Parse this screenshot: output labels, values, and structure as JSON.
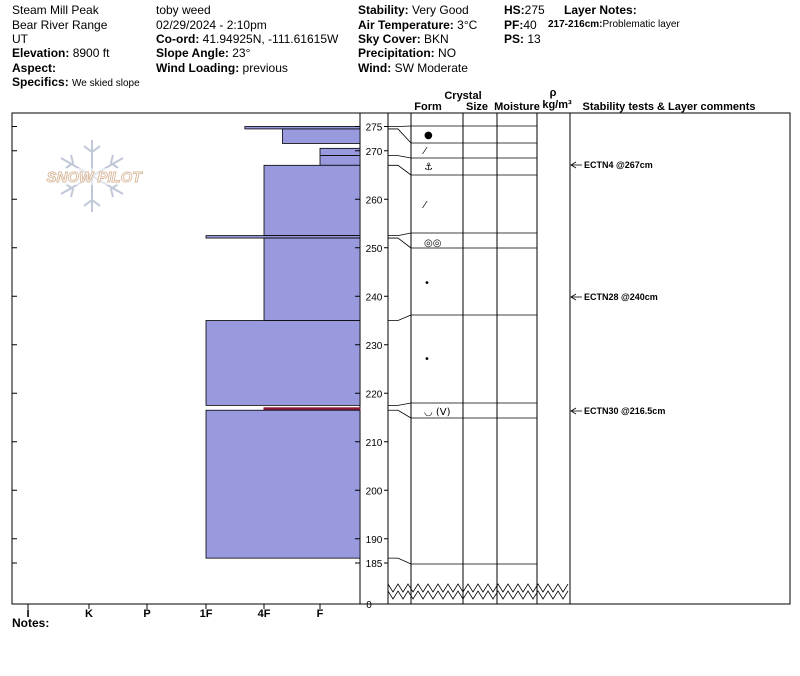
{
  "header": {
    "location": "Steam Mill Peak",
    "range": "Bear River Range",
    "state": "UT",
    "elevation_label": "Elevation:",
    "elevation": "8900 ft",
    "aspect_label": "Aspect:",
    "aspect": "",
    "specifics_label": "Specifics:",
    "specifics": "We skied slope",
    "observer": "toby weed",
    "datetime": "02/29/2024 - 2:10pm",
    "coord_label": "Co-ord:",
    "coord": "41.94925N, -111.61615W",
    "slope_label": "Slope Angle:",
    "slope": "23°",
    "wind_loading_label": "Wind Loading:",
    "wind_loading": "previous",
    "stability_label": "Stability:",
    "stability": "Very Good",
    "air_temp_label": "Air Temperature:",
    "air_temp": "3°C",
    "sky_label": "Sky Cover:",
    "sky": "BKN",
    "precip_label": "Precipitation:",
    "precip": "NO",
    "wind_label": "Wind:",
    "wind": "SW Moderate",
    "hs_label": "HS:",
    "hs": "275",
    "pf_label": "PF:",
    "pf": "40",
    "ps_label": "PS:",
    "ps": "13",
    "layer_notes_label": "Layer Notes:",
    "layer_note_range": "217-216cm:",
    "layer_note_text": "Problematic layer",
    "notes_label": "Notes:"
  },
  "logo_text": "SNOW PILOT",
  "columns": {
    "crystal": "Crystal",
    "form": "Form",
    "size": "Size",
    "moisture": "Moisture",
    "rho": "ρ",
    "density_unit": "kg/m³",
    "comments": "Stability tests & Layer comments"
  },
  "colors": {
    "layer_fill": "#9999dd",
    "weak_layer": "#8b1a3a",
    "logo": "#c0c8d8",
    "grid": "#000000"
  },
  "chart_data": {
    "type": "snow-profile",
    "hardness_scale": [
      "I",
      "K",
      "P",
      "1F",
      "4F",
      "F"
    ],
    "depth_ticks": [
      275,
      270,
      260,
      250,
      240,
      230,
      220,
      210,
      200,
      190,
      185
    ],
    "depth_break_label": "0",
    "depth_range": [
      180,
      277
    ],
    "layers": [
      {
        "top": 275,
        "bottom": 274.5,
        "hardness": 3.67
      },
      {
        "top": 274.5,
        "bottom": 271.5,
        "hardness": 4.33
      },
      {
        "top": 270.5,
        "bottom": 269,
        "hardness": 5.0
      },
      {
        "top": 269,
        "bottom": 267,
        "hardness": 5.0
      },
      {
        "top": 267,
        "bottom": 252.5,
        "hardness": 4.0
      },
      {
        "top": 252.5,
        "bottom": 252,
        "hardness": 3.0
      },
      {
        "top": 252,
        "bottom": 235,
        "hardness": 4.0
      },
      {
        "top": 235,
        "bottom": 217.5,
        "hardness": 3.0
      },
      {
        "top": 217,
        "bottom": 216.5,
        "hardness": 4.0,
        "weak": true
      },
      {
        "top": 216.5,
        "bottom": 186,
        "hardness": 3.0
      }
    ],
    "form_symbols": [
      {
        "depth": 273,
        "symbol": "●",
        "grain": "precipitation particles"
      },
      {
        "depth": 270,
        "symbol": "⁄",
        "grain": "decomposing"
      },
      {
        "depth": 268,
        "symbol": "⚓",
        "grain": "depth hoar"
      },
      {
        "depth": 260,
        "symbol": "⁄",
        "grain": "decomposing"
      },
      {
        "depth": 251.5,
        "symbol": "◎◎",
        "grain": "melt forms"
      },
      {
        "depth": 243,
        "symbol": "•",
        "grain": "rounded"
      },
      {
        "depth": 226,
        "symbol": "•",
        "grain": "rounded"
      },
      {
        "depth": 217,
        "symbol": "◡ (V)",
        "grain": "surface hoar"
      }
    ],
    "stability_tests": [
      {
        "depth": 267,
        "label": "ECTN4 @267cm"
      },
      {
        "depth": 240,
        "label": "ECTN28 @240cm"
      },
      {
        "depth": 216.5,
        "label": "ECTN30 @216.5cm"
      }
    ]
  }
}
